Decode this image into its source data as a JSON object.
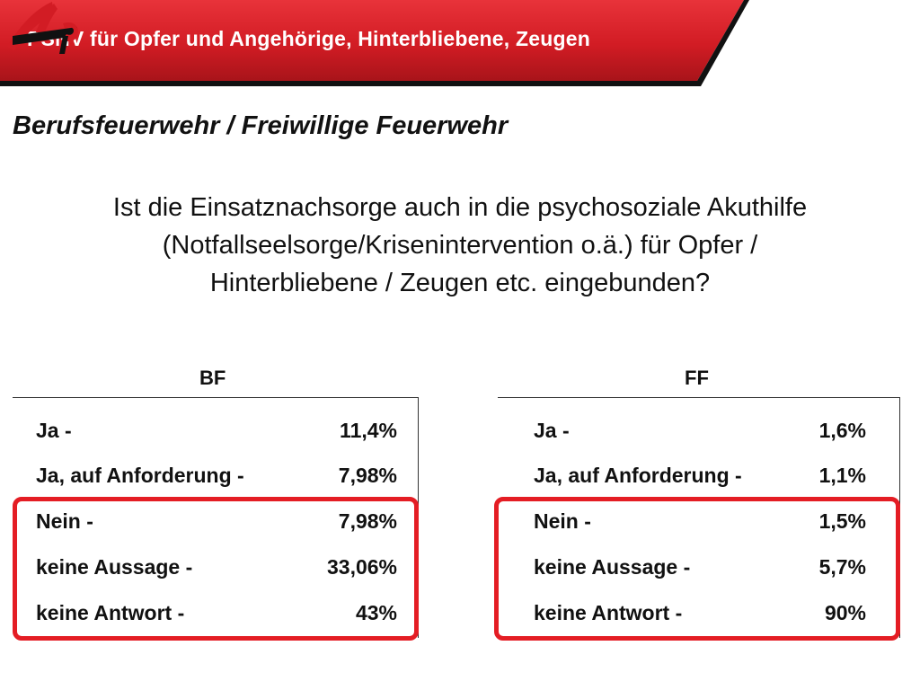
{
  "header": {
    "title": "PSNV für Opfer und Angehörige, Hinterbliebene, Zeugen",
    "brand_color": "#d91f26"
  },
  "subtitle": "Berufsfeuerwehr / Freiwillige Feuerwehr",
  "question": {
    "line1": "Ist die Einsatznachsorge auch in die psychosoziale Akuthilfe",
    "line2": "(Notfallseelsorge/Krisenintervention o.ä.) für Opfer /",
    "line3": "Hinterbliebene / Zeugen etc. eingebunden?"
  },
  "tables": [
    {
      "header": "BF",
      "rows": [
        {
          "label": "Ja -",
          "value": "11,4%"
        },
        {
          "label": "Ja, auf Anforderung -",
          "value": "7,98%"
        },
        {
          "label": "Nein -",
          "value": "7,98%"
        },
        {
          "label": "keine Aussage -",
          "value": "33,06%"
        },
        {
          "label": "keine Antwort -",
          "value": "43%"
        }
      ]
    },
    {
      "header": "FF",
      "rows": [
        {
          "label": "Ja -",
          "value": "1,6%"
        },
        {
          "label": "Ja, auf Anforderung -",
          "value": "1,1%"
        },
        {
          "label": "Nein -",
          "value": "1,5%"
        },
        {
          "label": "keine Aussage -",
          "value": "5,7%"
        },
        {
          "label": "keine Antwort -",
          "value": "90%"
        }
      ]
    }
  ],
  "highlight_color": "#e41d24",
  "logo_icon": "feuerwehr-logo-icon"
}
